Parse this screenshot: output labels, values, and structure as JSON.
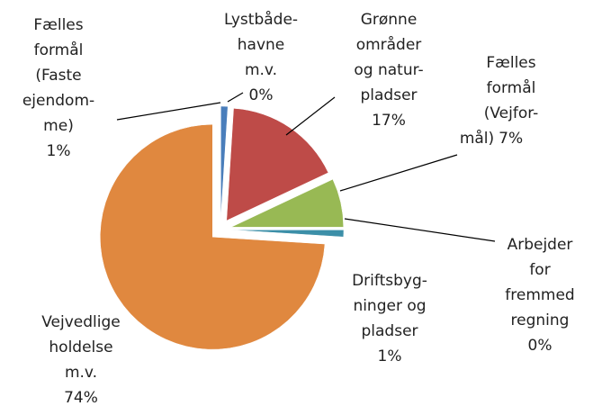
{
  "chart_data": {
    "type": "pie",
    "categories": [
      [
        "Fælles",
        "formål",
        "(Faste",
        "ejendom-",
        "me)"
      ],
      [
        "Lystbåde-",
        "havne",
        "m.v."
      ],
      [
        "Grønne",
        "områder",
        "og natur-",
        "pladser"
      ],
      [
        "Fælles",
        "formål",
        "(Vejfor-",
        "mål)"
      ],
      [
        "Arbejder",
        "for",
        "fremmed",
        "regning"
      ],
      [
        "Driftsbyg-",
        "ninger og",
        "pladser"
      ],
      [
        "Vejvedlige",
        "holdelse",
        "m.v."
      ]
    ],
    "values": [
      1,
      0,
      17,
      7,
      0,
      1,
      74
    ],
    "value_labels": [
      "1%",
      "0%",
      "17%",
      "7%",
      "0%",
      "1%",
      "74%"
    ],
    "colors": [
      "#4a7ebb",
      "#7d60a0",
      "#be4b48",
      "#98b954",
      "#4bacc6",
      "#3c8fa8",
      "#e0883f"
    ]
  }
}
